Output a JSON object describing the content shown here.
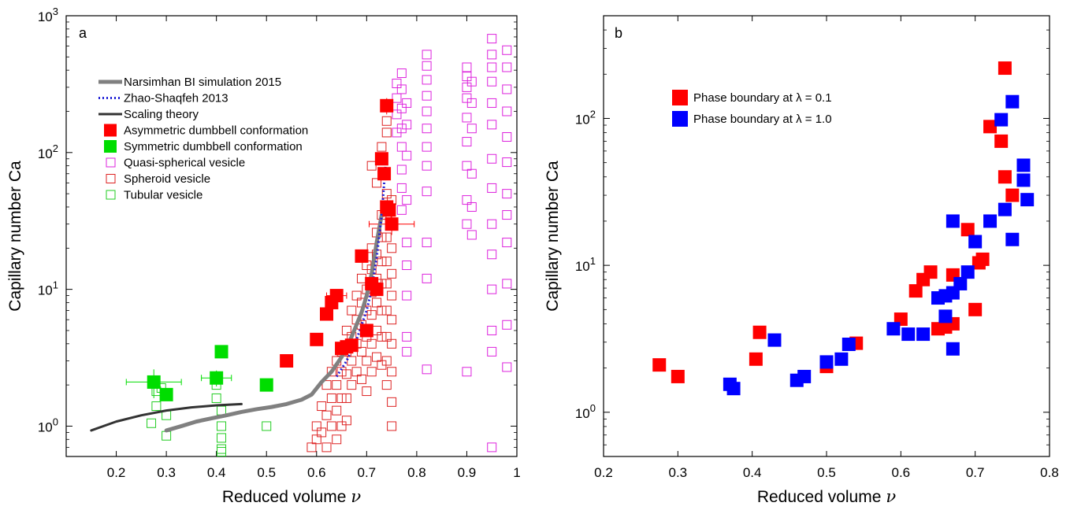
{
  "chart_data": [
    {
      "type": "scatter",
      "panel_label": "a",
      "xlabel": "Reduced volume",
      "xlabel_symbol": "ν",
      "ylabel": "Capillary number Ca",
      "xlim": [
        0.1,
        1.0
      ],
      "ylim": [
        0.6,
        1000
      ],
      "yscale": "log",
      "xticks": [
        0.2,
        0.3,
        0.4,
        0.5,
        0.6,
        0.7,
        0.8,
        0.9,
        1.0
      ],
      "xtick_labels": [
        "0.2",
        "0.3",
        "0.4",
        "0.5",
        "0.6",
        "0.7",
        "0.8",
        "0.9",
        "1"
      ],
      "yticks": [
        1,
        10,
        100,
        1000
      ],
      "ytick_labels": [
        [
          "10",
          "0"
        ],
        [
          "10",
          "1"
        ],
        [
          "10",
          "2"
        ],
        [
          "10",
          "3"
        ]
      ],
      "legend_position": "upper-left",
      "legend": [
        {
          "label": "Narsimhan BI simulation 2015",
          "kind": "line",
          "color": "#808080",
          "dash": "solid",
          "width": 5
        },
        {
          "label": "Zhao-Shaqfeh 2013",
          "kind": "line",
          "color": "#1f1fd6",
          "dash": "dotted",
          "width": 3
        },
        {
          "label": "Scaling theory",
          "kind": "line",
          "color": "#333333",
          "dash": "solid",
          "width": 3
        },
        {
          "label": "Asymmetric dumbbell conformation",
          "kind": "filled",
          "color": "#ff0000"
        },
        {
          "label": "Symmetric dumbbell conformation",
          "kind": "filled",
          "color": "#00dd00"
        },
        {
          "label": "Quasi-spherical vesicle",
          "kind": "open",
          "color": "#dd22dd"
        },
        {
          "label": "Spheroid vesicle",
          "kind": "open",
          "color": "#dd2222"
        },
        {
          "label": "Tubular vesicle",
          "kind": "open",
          "color": "#22cc22"
        }
      ],
      "series": [
        {
          "name": "Narsimhan BI simulation 2015",
          "kind": "line",
          "color": "#808080",
          "x": [
            0.3,
            0.33,
            0.36,
            0.39,
            0.42,
            0.45,
            0.48,
            0.51,
            0.54,
            0.57,
            0.59,
            0.61,
            0.63,
            0.65,
            0.67,
            0.69,
            0.7,
            0.71,
            0.72,
            0.73
          ],
          "y": [
            0.93,
            1.0,
            1.08,
            1.14,
            1.2,
            1.27,
            1.33,
            1.38,
            1.45,
            1.56,
            1.7,
            2.1,
            2.5,
            3.2,
            4.5,
            6.8,
            9.0,
            13.0,
            22.0,
            35.0
          ]
        },
        {
          "name": "Zhao-Shaqfeh 2013",
          "kind": "line",
          "color": "#1f1fd6",
          "x": [
            0.64,
            0.66,
            0.68,
            0.7,
            0.71,
            0.72,
            0.73,
            0.735,
            0.74
          ],
          "y": [
            2.3,
            3.0,
            4.3,
            7.0,
            10.0,
            17.0,
            35.0,
            60.0,
            100.0
          ]
        },
        {
          "name": "Scaling theory",
          "kind": "line",
          "color": "#333333",
          "x": [
            0.15,
            0.2,
            0.25,
            0.3,
            0.35,
            0.4,
            0.45
          ],
          "y": [
            0.93,
            1.08,
            1.2,
            1.3,
            1.37,
            1.42,
            1.45
          ]
        },
        {
          "name": "Quasi-spherical vesicle",
          "kind": "open",
          "color": "#dd22dd",
          "x": [
            0.76,
            0.76,
            0.76,
            0.76,
            0.77,
            0.77,
            0.77,
            0.77,
            0.77,
            0.77,
            0.77,
            0.77,
            0.78,
            0.78,
            0.78,
            0.78,
            0.78,
            0.78,
            0.78,
            0.78,
            0.78,
            0.82,
            0.82,
            0.82,
            0.82,
            0.82,
            0.82,
            0.82,
            0.82,
            0.82,
            0.82,
            0.82,
            0.82,
            0.9,
            0.9,
            0.9,
            0.9,
            0.9,
            0.9,
            0.9,
            0.9,
            0.9,
            0.9,
            0.91,
            0.91,
            0.91,
            0.91,
            0.91,
            0.91,
            0.95,
            0.95,
            0.95,
            0.95,
            0.95,
            0.95,
            0.95,
            0.95,
            0.95,
            0.95,
            0.95,
            0.95,
            0.95,
            0.95,
            0.98,
            0.98,
            0.98,
            0.98,
            0.98,
            0.98,
            0.98,
            0.98,
            0.98,
            0.98,
            0.98,
            0.98
          ],
          "y": [
            320,
            250,
            190,
            140,
            380,
            290,
            210,
            150,
            110,
            75,
            55,
            38,
            230,
            160,
            95,
            45,
            22,
            15,
            9,
            4.5,
            3.5,
            520,
            430,
            340,
            260,
            200,
            150,
            110,
            80,
            52,
            22,
            12,
            2.6,
            420,
            360,
            300,
            250,
            180,
            120,
            80,
            45,
            30,
            2.5,
            330,
            230,
            150,
            70,
            40,
            25,
            680,
            520,
            420,
            330,
            230,
            160,
            90,
            55,
            30,
            18,
            10,
            5,
            3.5,
            0.7,
            560,
            420,
            290,
            200,
            130,
            85,
            50,
            35,
            22,
            11,
            5.5,
            2.7
          ]
        },
        {
          "name": "Spheroid vesicle",
          "kind": "open",
          "color": "#dd2222",
          "x": [
            0.59,
            0.6,
            0.6,
            0.61,
            0.61,
            0.62,
            0.62,
            0.62,
            0.63,
            0.63,
            0.63,
            0.64,
            0.64,
            0.64,
            0.64,
            0.65,
            0.65,
            0.65,
            0.65,
            0.66,
            0.66,
            0.66,
            0.66,
            0.66,
            0.67,
            0.67,
            0.67,
            0.67,
            0.68,
            0.68,
            0.68,
            0.68,
            0.69,
            0.69,
            0.69,
            0.69,
            0.69,
            0.7,
            0.7,
            0.7,
            0.7,
            0.7,
            0.7,
            0.71,
            0.71,
            0.71,
            0.71,
            0.71,
            0.71,
            0.72,
            0.72,
            0.72,
            0.72,
            0.72,
            0.72,
            0.73,
            0.73,
            0.73,
            0.73,
            0.73,
            0.73,
            0.73,
            0.74,
            0.74,
            0.74,
            0.74,
            0.74,
            0.74,
            0.74,
            0.74,
            0.74,
            0.75,
            0.75,
            0.75,
            0.75,
            0.75,
            0.75,
            0.75,
            0.75,
            0.75,
            0.75,
            0.71,
            0.72,
            0.73,
            0.74,
            0.74
          ],
          "y": [
            0.7,
            1.0,
            0.8,
            1.4,
            0.9,
            2.0,
            1.2,
            0.7,
            2.5,
            1.6,
            1.0,
            3.0,
            2.0,
            1.3,
            0.8,
            3.5,
            2.5,
            1.6,
            1.0,
            5.0,
            3.5,
            2.4,
            1.6,
            1.1,
            7.0,
            4.5,
            3.0,
            2.0,
            9.0,
            6.0,
            4.0,
            2.5,
            12,
            8.0,
            5.5,
            3.5,
            2.2,
            15,
            10,
            7.0,
            4.5,
            3.0,
            1.8,
            20,
            14,
            9.5,
            6.5,
            4.0,
            2.5,
            26,
            18,
            12,
            8.0,
            5.0,
            3.2,
            35,
            24,
            16,
            11,
            7.0,
            4.5,
            2.8,
            50,
            35,
            24,
            16,
            11,
            7.0,
            4.5,
            3.0,
            2.0,
            45,
            30,
            20,
            13,
            9.0,
            6.0,
            4.0,
            2.5,
            1.5,
            1.0,
            80,
            60,
            110,
            140,
            170
          ]
        },
        {
          "name": "Tubular vesicle",
          "kind": "open",
          "color": "#22cc22",
          "x": [
            0.27,
            0.28,
            0.28,
            0.29,
            0.3,
            0.3,
            0.4,
            0.4,
            0.41,
            0.41,
            0.41,
            0.41,
            0.41,
            0.5
          ],
          "y": [
            1.05,
            1.8,
            1.4,
            1.9,
            1.2,
            0.85,
            2.0,
            1.6,
            1.3,
            1.0,
            0.82,
            0.68,
            0.65,
            1.0
          ]
        },
        {
          "name": "Asymmetric dumbbell conformation",
          "kind": "filled",
          "color": "#ff0000",
          "x": [
            0.54,
            0.6,
            0.62,
            0.63,
            0.64,
            0.65,
            0.66,
            0.67,
            0.69,
            0.7,
            0.71,
            0.72,
            0.73,
            0.735,
            0.74,
            0.745,
            0.75,
            0.74
          ],
          "y": [
            3.0,
            4.3,
            6.6,
            8.0,
            9.0,
            3.7,
            3.8,
            3.9,
            17.5,
            5.0,
            11.0,
            10.0,
            90.0,
            70.0,
            40.0,
            38.0,
            30.0,
            220.0
          ]
        },
        {
          "name": "Symmetric dumbbell conformation",
          "kind": "filled",
          "color": "#00dd00",
          "x": [
            0.275,
            0.3,
            0.4,
            0.41,
            0.5
          ],
          "y": [
            2.1,
            1.7,
            2.25,
            3.5,
            2.0
          ]
        }
      ],
      "error_bars": [
        {
          "x": 0.275,
          "y": 2.1,
          "xerr": 0.055,
          "yerr_lo": 0.5,
          "yerr_hi": 0.5,
          "color": "#00dd00"
        },
        {
          "x": 0.4,
          "y": 2.25,
          "xerr": 0.03,
          "yerr_lo": 0.3,
          "yerr_hi": 0.3,
          "color": "#00dd00"
        },
        {
          "x": 0.74,
          "y": 220,
          "xerr": 0.01,
          "yerr_lo": 30,
          "yerr_hi": 30,
          "color": "#ff0000"
        },
        {
          "x": 0.75,
          "y": 30,
          "xerr": 0.045,
          "yerr_lo": 5,
          "yerr_hi": 5,
          "color": "#ff0000"
        },
        {
          "x": 0.64,
          "y": 9,
          "xerr": 0.02,
          "yerr_lo": 1,
          "yerr_hi": 1,
          "color": "#ff0000"
        }
      ]
    },
    {
      "type": "scatter",
      "panel_label": "b",
      "xlabel": "Reduced volume",
      "xlabel_symbol": "ν",
      "ylabel": "Capillary number Ca",
      "xlim": [
        0.2,
        0.8
      ],
      "ylim": [
        0.5,
        500
      ],
      "yscale": "log",
      "xticks": [
        0.2,
        0.3,
        0.4,
        0.5,
        0.6,
        0.7,
        0.8
      ],
      "xtick_labels": [
        "0.2",
        "0.3",
        "0.4",
        "0.5",
        "0.6",
        "0.7",
        "0.8"
      ],
      "yticks": [
        1,
        10,
        100
      ],
      "ytick_labels": [
        [
          "10",
          "0"
        ],
        [
          "10",
          "1"
        ],
        [
          "10",
          "2"
        ]
      ],
      "legend_position": "upper-left",
      "legend": [
        {
          "label": "Phase boundary at λ = 0.1",
          "kind": "filled",
          "color": "#ff0000"
        },
        {
          "label": "Phase boundary at λ = 1.0",
          "kind": "filled",
          "color": "#0000ff"
        }
      ],
      "series": [
        {
          "name": "Phase boundary at λ = 0.1",
          "kind": "filled",
          "color": "#ff0000",
          "x": [
            0.275,
            0.3,
            0.405,
            0.41,
            0.5,
            0.54,
            0.6,
            0.62,
            0.63,
            0.64,
            0.65,
            0.66,
            0.67,
            0.67,
            0.69,
            0.7,
            0.705,
            0.71,
            0.72,
            0.735,
            0.74,
            0.74,
            0.75
          ],
          "y": [
            2.1,
            1.75,
            2.3,
            3.5,
            2.05,
            2.95,
            4.3,
            6.7,
            8.0,
            9.0,
            3.7,
            3.8,
            4.0,
            8.6,
            17.5,
            5.0,
            10.4,
            11.0,
            88.0,
            70.0,
            40.0,
            220.0,
            30.0
          ]
        },
        {
          "name": "Phase boundary at λ = 1.0",
          "kind": "filled",
          "color": "#0000ff",
          "x": [
            0.37,
            0.375,
            0.43,
            0.46,
            0.47,
            0.5,
            0.52,
            0.53,
            0.59,
            0.61,
            0.63,
            0.65,
            0.66,
            0.67,
            0.67,
            0.68,
            0.69,
            0.7,
            0.72,
            0.735,
            0.74,
            0.75,
            0.75,
            0.765,
            0.765,
            0.77,
            0.67,
            0.66
          ],
          "y": [
            1.55,
            1.45,
            3.1,
            1.65,
            1.75,
            2.2,
            2.3,
            2.9,
            3.7,
            3.4,
            3.4,
            6.0,
            4.5,
            6.5,
            20.0,
            7.5,
            9.0,
            14.5,
            20.0,
            98.0,
            24.0,
            130.0,
            15.0,
            48.0,
            38.0,
            28.0,
            2.7,
            6.2
          ]
        }
      ]
    }
  ]
}
